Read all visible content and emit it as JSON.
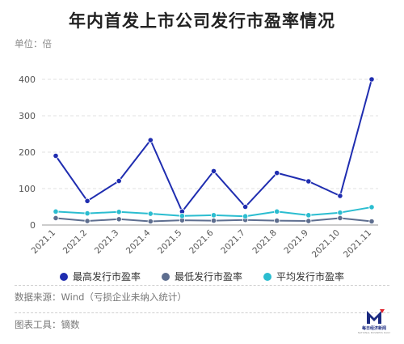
{
  "header": {
    "title": "年内首发上市公司发行市盈率情况",
    "unit_label": "单位：倍"
  },
  "footer": {
    "source": "数据来源：Wind（亏损企业未纳入统计）",
    "tool": "图表工具：镝数",
    "logo_name": "每日经济新闻",
    "logo_sub": "NATIONAL BUSINESS DAILY"
  },
  "chart_data": {
    "type": "line",
    "title": "年内首发上市公司发行市盈率情况",
    "ylabel": "单位：倍",
    "categories": [
      "2021.1",
      "2021.2",
      "2021.3",
      "2021.4",
      "2021.5",
      "2021.6",
      "2021.7",
      "2021.8",
      "2021.9",
      "2021.10",
      "2021.11"
    ],
    "yticks": [
      0,
      100,
      200,
      300,
      400
    ],
    "ylim": [
      0,
      400
    ],
    "grid": true,
    "legend_position": "bottom",
    "series": [
      {
        "name": "最高发行市盈率",
        "color": "#1f2db0",
        "values": [
          190,
          66,
          121,
          233,
          37,
          148,
          50,
          143,
          120,
          80,
          400
        ]
      },
      {
        "name": "最低发行市盈率",
        "color": "#5e6e8f",
        "values": [
          19,
          11,
          16,
          10,
          13,
          12,
          14,
          12,
          11,
          19,
          10
        ]
      },
      {
        "name": "平均发行市盈率",
        "color": "#2bbdd0",
        "values": [
          37,
          32,
          36,
          31,
          25,
          27,
          24,
          37,
          27,
          34,
          49
        ]
      }
    ]
  }
}
